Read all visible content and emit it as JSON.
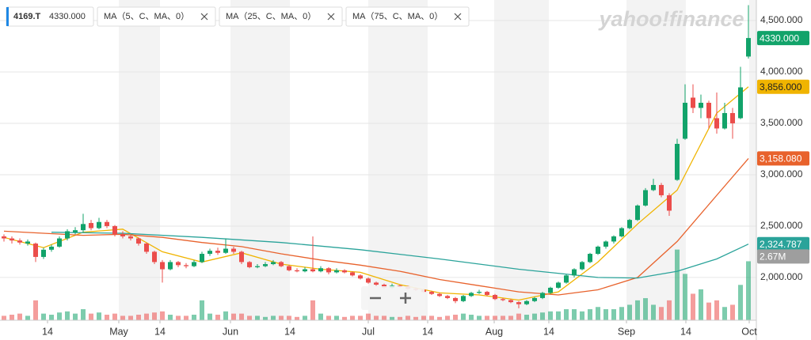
{
  "chart_data": {
    "type": "candlestick",
    "symbol": "4169.T",
    "close_label": "4330.000",
    "logo": "yahoo!finance",
    "up_color": "#12a36a",
    "down_color": "#eb4d4b",
    "ylim": [
      1584,
      4700
    ],
    "yticks": [
      {
        "value": 2000,
        "label": "2,000.000"
      },
      {
        "value": 2500,
        "label": "2,500.000"
      },
      {
        "value": 3000,
        "label": "3,000.000"
      },
      {
        "value": 3500,
        "label": "3,500.000"
      },
      {
        "value": 4000,
        "label": "4,000.000"
      },
      {
        "value": 4500,
        "label": "4,500.000"
      }
    ],
    "xlim": [
      -0.5,
      95
    ],
    "xticks": [
      {
        "value": 5.5,
        "label": "14"
      },
      {
        "value": 14.5,
        "label": "May"
      },
      {
        "value": 19.7,
        "label": "14"
      },
      {
        "value": 28.6,
        "label": "Jun"
      },
      {
        "value": 36.1,
        "label": "14"
      },
      {
        "value": 46,
        "label": "Jul"
      },
      {
        "value": 53.5,
        "label": "14"
      },
      {
        "value": 61.9,
        "label": "Aug"
      },
      {
        "value": 68.8,
        "label": "14"
      },
      {
        "value": 78.6,
        "label": "Sep"
      },
      {
        "value": 86.1,
        "label": "14"
      },
      {
        "value": 94.1,
        "label": "Oct"
      }
    ],
    "grid": true,
    "ohlc": [
      [
        2400,
        2420,
        2350,
        2380
      ],
      [
        2380,
        2400,
        2330,
        2360
      ],
      [
        2360,
        2380,
        2320,
        2340
      ],
      [
        2330,
        2370,
        2310,
        2350
      ],
      [
        2330,
        2340,
        2150,
        2200
      ],
      [
        2200,
        2290,
        2180,
        2270
      ],
      [
        2270,
        2320,
        2250,
        2300
      ],
      [
        2300,
        2400,
        2290,
        2380
      ],
      [
        2380,
        2470,
        2360,
        2450
      ],
      [
        2440,
        2490,
        2420,
        2460
      ],
      [
        2460,
        2620,
        2440,
        2520
      ],
      [
        2530,
        2560,
        2460,
        2480
      ],
      [
        2480,
        2580,
        2470,
        2540
      ],
      [
        2540,
        2560,
        2480,
        2500
      ],
      [
        2500,
        2510,
        2400,
        2420
      ],
      [
        2420,
        2450,
        2380,
        2400
      ],
      [
        2400,
        2420,
        2360,
        2380
      ],
      [
        2380,
        2390,
        2310,
        2330
      ],
      [
        2330,
        2340,
        2230,
        2250
      ],
      [
        2250,
        2260,
        2130,
        2150
      ],
      [
        2150,
        2170,
        1950,
        2080
      ],
      [
        2080,
        2170,
        2070,
        2150
      ],
      [
        2150,
        2160,
        2100,
        2120
      ],
      [
        2120,
        2140,
        2090,
        2110
      ],
      [
        2110,
        2170,
        2100,
        2150
      ],
      [
        2150,
        2250,
        2140,
        2230
      ],
      [
        2230,
        2280,
        2210,
        2260
      ],
      [
        2260,
        2290,
        2220,
        2240
      ],
      [
        2240,
        2380,
        2230,
        2280
      ],
      [
        2280,
        2300,
        2230,
        2250
      ],
      [
        2250,
        2260,
        2130,
        2150
      ],
      [
        2150,
        2160,
        2090,
        2100
      ],
      [
        2100,
        2130,
        2090,
        2110
      ],
      [
        2110,
        2150,
        2100,
        2130
      ],
      [
        2130,
        2170,
        2120,
        2150
      ],
      [
        2150,
        2160,
        2100,
        2110
      ],
      [
        2110,
        2120,
        2060,
        2070
      ],
      [
        2070,
        2090,
        2050,
        2060
      ],
      [
        2060,
        2100,
        2050,
        2080
      ],
      [
        2080,
        2400,
        2050,
        2060
      ],
      [
        2060,
        2110,
        2050,
        2090
      ],
      [
        2090,
        2100,
        2030,
        2050
      ],
      [
        2050,
        2090,
        2040,
        2070
      ],
      [
        2070,
        2080,
        2040,
        2050
      ],
      [
        2050,
        2060,
        2010,
        2020
      ],
      [
        2020,
        2030,
        1980,
        1990
      ],
      [
        1990,
        2000,
        1940,
        1950
      ],
      [
        1950,
        1960,
        1920,
        1930
      ],
      [
        1930,
        1940,
        1890,
        1900
      ],
      [
        1900,
        1940,
        1890,
        1920
      ],
      [
        1920,
        1930,
        1900,
        1910
      ],
      [
        1910,
        1920,
        1880,
        1890
      ],
      [
        1890,
        1900,
        1870,
        1880
      ],
      [
        1880,
        1890,
        1850,
        1860
      ],
      [
        1860,
        1870,
        1830,
        1840
      ],
      [
        1840,
        1850,
        1810,
        1820
      ],
      [
        1820,
        1830,
        1790,
        1800
      ],
      [
        1800,
        1810,
        1750,
        1770
      ],
      [
        1770,
        1830,
        1760,
        1820
      ],
      [
        1820,
        1860,
        1810,
        1850
      ],
      [
        1850,
        1880,
        1840,
        1860
      ],
      [
        1860,
        1870,
        1820,
        1830
      ],
      [
        1830,
        1840,
        1780,
        1790
      ],
      [
        1790,
        1800,
        1770,
        1780
      ],
      [
        1780,
        1790,
        1750,
        1760
      ],
      [
        1760,
        1770,
        1700,
        1740
      ],
      [
        1740,
        1780,
        1730,
        1770
      ],
      [
        1770,
        1810,
        1760,
        1800
      ],
      [
        1800,
        1860,
        1790,
        1850
      ],
      [
        1850,
        1910,
        1840,
        1900
      ],
      [
        1900,
        1960,
        1890,
        1950
      ],
      [
        1950,
        2030,
        1940,
        2020
      ],
      [
        2020,
        2090,
        2000,
        2080
      ],
      [
        2080,
        2160,
        2070,
        2150
      ],
      [
        2150,
        2240,
        2140,
        2230
      ],
      [
        2230,
        2310,
        2220,
        2300
      ],
      [
        2300,
        2360,
        2280,
        2350
      ],
      [
        2350,
        2410,
        2330,
        2400
      ],
      [
        2400,
        2490,
        2390,
        2480
      ],
      [
        2480,
        2570,
        2470,
        2560
      ],
      [
        2560,
        2710,
        2550,
        2700
      ],
      [
        2700,
        2870,
        2690,
        2850
      ],
      [
        2850,
        2960,
        2840,
        2900
      ],
      [
        2900,
        2920,
        2780,
        2800
      ],
      [
        2800,
        2820,
        2600,
        2650
      ],
      [
        2950,
        3350,
        2940,
        3300
      ],
      [
        3350,
        3880,
        3340,
        3700
      ],
      [
        3750,
        3880,
        3600,
        3650
      ],
      [
        3650,
        3780,
        3550,
        3700
      ],
      [
        3700,
        3720,
        3450,
        3550
      ],
      [
        3550,
        3800,
        3400,
        3450
      ],
      [
        3450,
        3700,
        3440,
        3600
      ],
      [
        3600,
        3650,
        3350,
        3500
      ],
      [
        3550,
        4050,
        3540,
        3850
      ],
      [
        4150,
        4650,
        4130,
        4330
      ]
    ],
    "volume_ylim": [
      0,
      14.5
    ],
    "volume": [
      0.2,
      0.25,
      0.3,
      0.2,
      0.9,
      0.3,
      0.25,
      0.35,
      0.4,
      0.3,
      0.5,
      0.3,
      0.35,
      0.25,
      0.3,
      0.2,
      0.2,
      0.25,
      0.3,
      0.35,
      0.4,
      0.25,
      0.2,
      0.2,
      0.25,
      0.9,
      0.3,
      0.25,
      0.4,
      0.3,
      0.3,
      0.2,
      0.2,
      0.15,
      0.2,
      0.2,
      0.2,
      0.15,
      0.2,
      0.9,
      0.3,
      0.2,
      0.2,
      0.15,
      0.2,
      0.2,
      0.3,
      0.2,
      0.2,
      0.15,
      0.15,
      0.2,
      0.15,
      0.2,
      0.2,
      0.15,
      0.2,
      0.25,
      0.3,
      0.25,
      0.2,
      0.2,
      0.2,
      0.2,
      0.2,
      0.3,
      0.25,
      0.3,
      0.35,
      0.4,
      0.4,
      0.5,
      0.5,
      0.4,
      0.5,
      0.6,
      0.5,
      0.5,
      0.6,
      0.7,
      0.9,
      1.0,
      0.7,
      0.6,
      0.9,
      3.2,
      2.1,
      1.2,
      1.4,
      0.8,
      0.9,
      0.6,
      0.7,
      1.6,
      2.67
    ],
    "volume_label": "2.67M",
    "series": [
      {
        "name": "MA（5、C、MA、0）",
        "color": "#f0b400",
        "last_label": "3,856.000",
        "x": [
          0,
          5,
          10,
          15,
          20,
          25,
          30,
          35,
          40,
          45,
          50,
          55,
          60,
          65,
          70,
          75,
          80,
          85,
          90,
          94
        ],
        "values": [
          2390,
          2290,
          2440,
          2470,
          2250,
          2150,
          2240,
          2130,
          2080,
          2050,
          1930,
          1850,
          1830,
          1780,
          1860,
          2150,
          2520,
          2850,
          3600,
          3856
        ]
      },
      {
        "name": "MA（25、C、MA、0）",
        "color": "#e8622c",
        "last_label": "3,158.080",
        "x": [
          0,
          5,
          10,
          15,
          20,
          25,
          30,
          35,
          40,
          45,
          50,
          55,
          60,
          65,
          70,
          75,
          80,
          85,
          90,
          94
        ],
        "values": [
          2450,
          2430,
          2410,
          2420,
          2390,
          2340,
          2300,
          2230,
          2170,
          2120,
          2060,
          1980,
          1920,
          1860,
          1830,
          1880,
          2000,
          2350,
          2800,
          3158.08
        ]
      },
      {
        "name": "MA（75、C、MA、0）",
        "color": "#2aa39a",
        "last_label": "2,324.787",
        "x": [
          6,
          15,
          25,
          35,
          45,
          55,
          65,
          75,
          80,
          85,
          90,
          94
        ],
        "values": [
          2440,
          2430,
          2390,
          2340,
          2270,
          2180,
          2080,
          2000,
          1995,
          2060,
          2180,
          2324.787
        ]
      }
    ]
  }
}
